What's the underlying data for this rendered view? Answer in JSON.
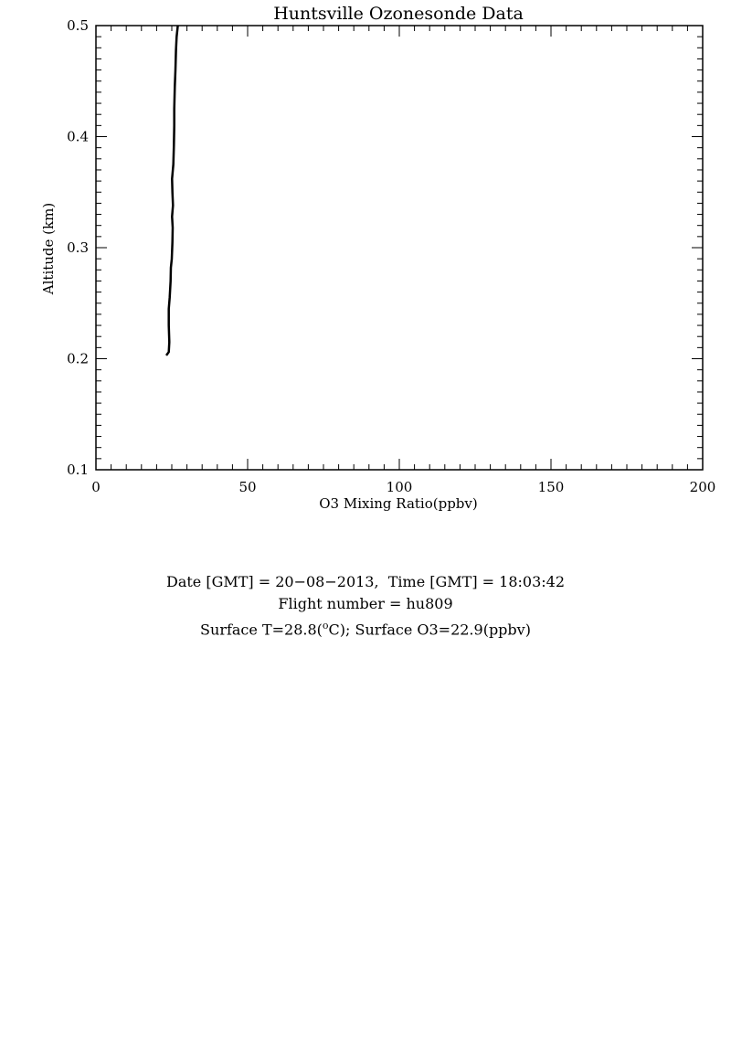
{
  "chart_data": {
    "type": "line",
    "title": "Huntsville Ozonesonde Data",
    "xlabel": "O3 Mixing Ratio(ppbv)",
    "ylabel": "Altitude (km)",
    "xlim": [
      0,
      200
    ],
    "ylim": [
      0.1,
      0.5
    ],
    "x_ticks": [
      "0",
      "50",
      "100",
      "150",
      "200"
    ],
    "y_ticks": [
      "0.1",
      "0.2",
      "0.3",
      "0.4",
      "0.5"
    ],
    "grid": false,
    "series": [
      {
        "color": "#000000",
        "points": [
          [
            23.2,
            0.203
          ],
          [
            24.0,
            0.206
          ],
          [
            24.2,
            0.215
          ],
          [
            24.0,
            0.23
          ],
          [
            24.0,
            0.245
          ],
          [
            24.3,
            0.255
          ],
          [
            24.6,
            0.27
          ],
          [
            24.7,
            0.282
          ],
          [
            25.0,
            0.29
          ],
          [
            25.2,
            0.305
          ],
          [
            25.3,
            0.318
          ],
          [
            25.1,
            0.328
          ],
          [
            25.4,
            0.338
          ],
          [
            25.2,
            0.35
          ],
          [
            25.1,
            0.362
          ],
          [
            25.5,
            0.375
          ],
          [
            25.7,
            0.392
          ],
          [
            25.8,
            0.41
          ],
          [
            25.8,
            0.425
          ],
          [
            26.0,
            0.445
          ],
          [
            26.2,
            0.46
          ],
          [
            26.4,
            0.478
          ],
          [
            26.6,
            0.49
          ],
          [
            27.0,
            0.5
          ]
        ]
      }
    ]
  },
  "info": {
    "date_line": "Date [GMT] = 20−08−2013,  Time [GMT] = 18:03:42",
    "flight_line": "Flight number = hu809",
    "surface_prefix": "Surface T=28.8(",
    "surface_sup": "o",
    "surface_suffix": "C); Surface O3=22.9(ppbv)"
  }
}
